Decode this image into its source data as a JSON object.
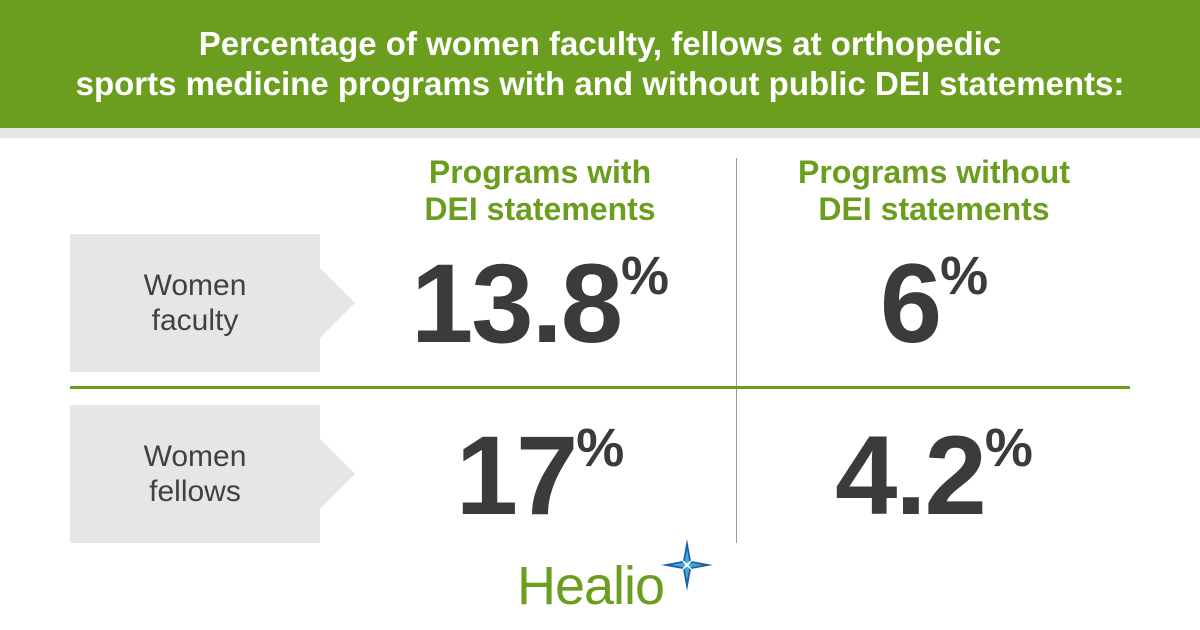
{
  "header": {
    "title_line1": "Percentage of women faculty, fellows at orthopedic",
    "title_line2": "sports medicine programs with and without public DEI statements:"
  },
  "chart_data": {
    "type": "table",
    "columns": [
      {
        "line1": "Programs with",
        "line2": "DEI statements"
      },
      {
        "line1": "Programs without",
        "line2": "DEI statements"
      }
    ],
    "rows": [
      {
        "line1": "Women",
        "line2": "faculty",
        "values": [
          "13.8",
          "6"
        ]
      },
      {
        "line1": "Women",
        "line2": "fellows",
        "values": [
          "17",
          "4.2"
        ]
      }
    ],
    "unit": "%"
  },
  "logo": {
    "text": "Healio"
  },
  "colors": {
    "accent_green": "#6b9e1f",
    "value_text": "#3a3b3c",
    "label_bg": "#e6e6e6",
    "star_blue": "#1e5fa8",
    "star_light": "#3fa9dc"
  }
}
